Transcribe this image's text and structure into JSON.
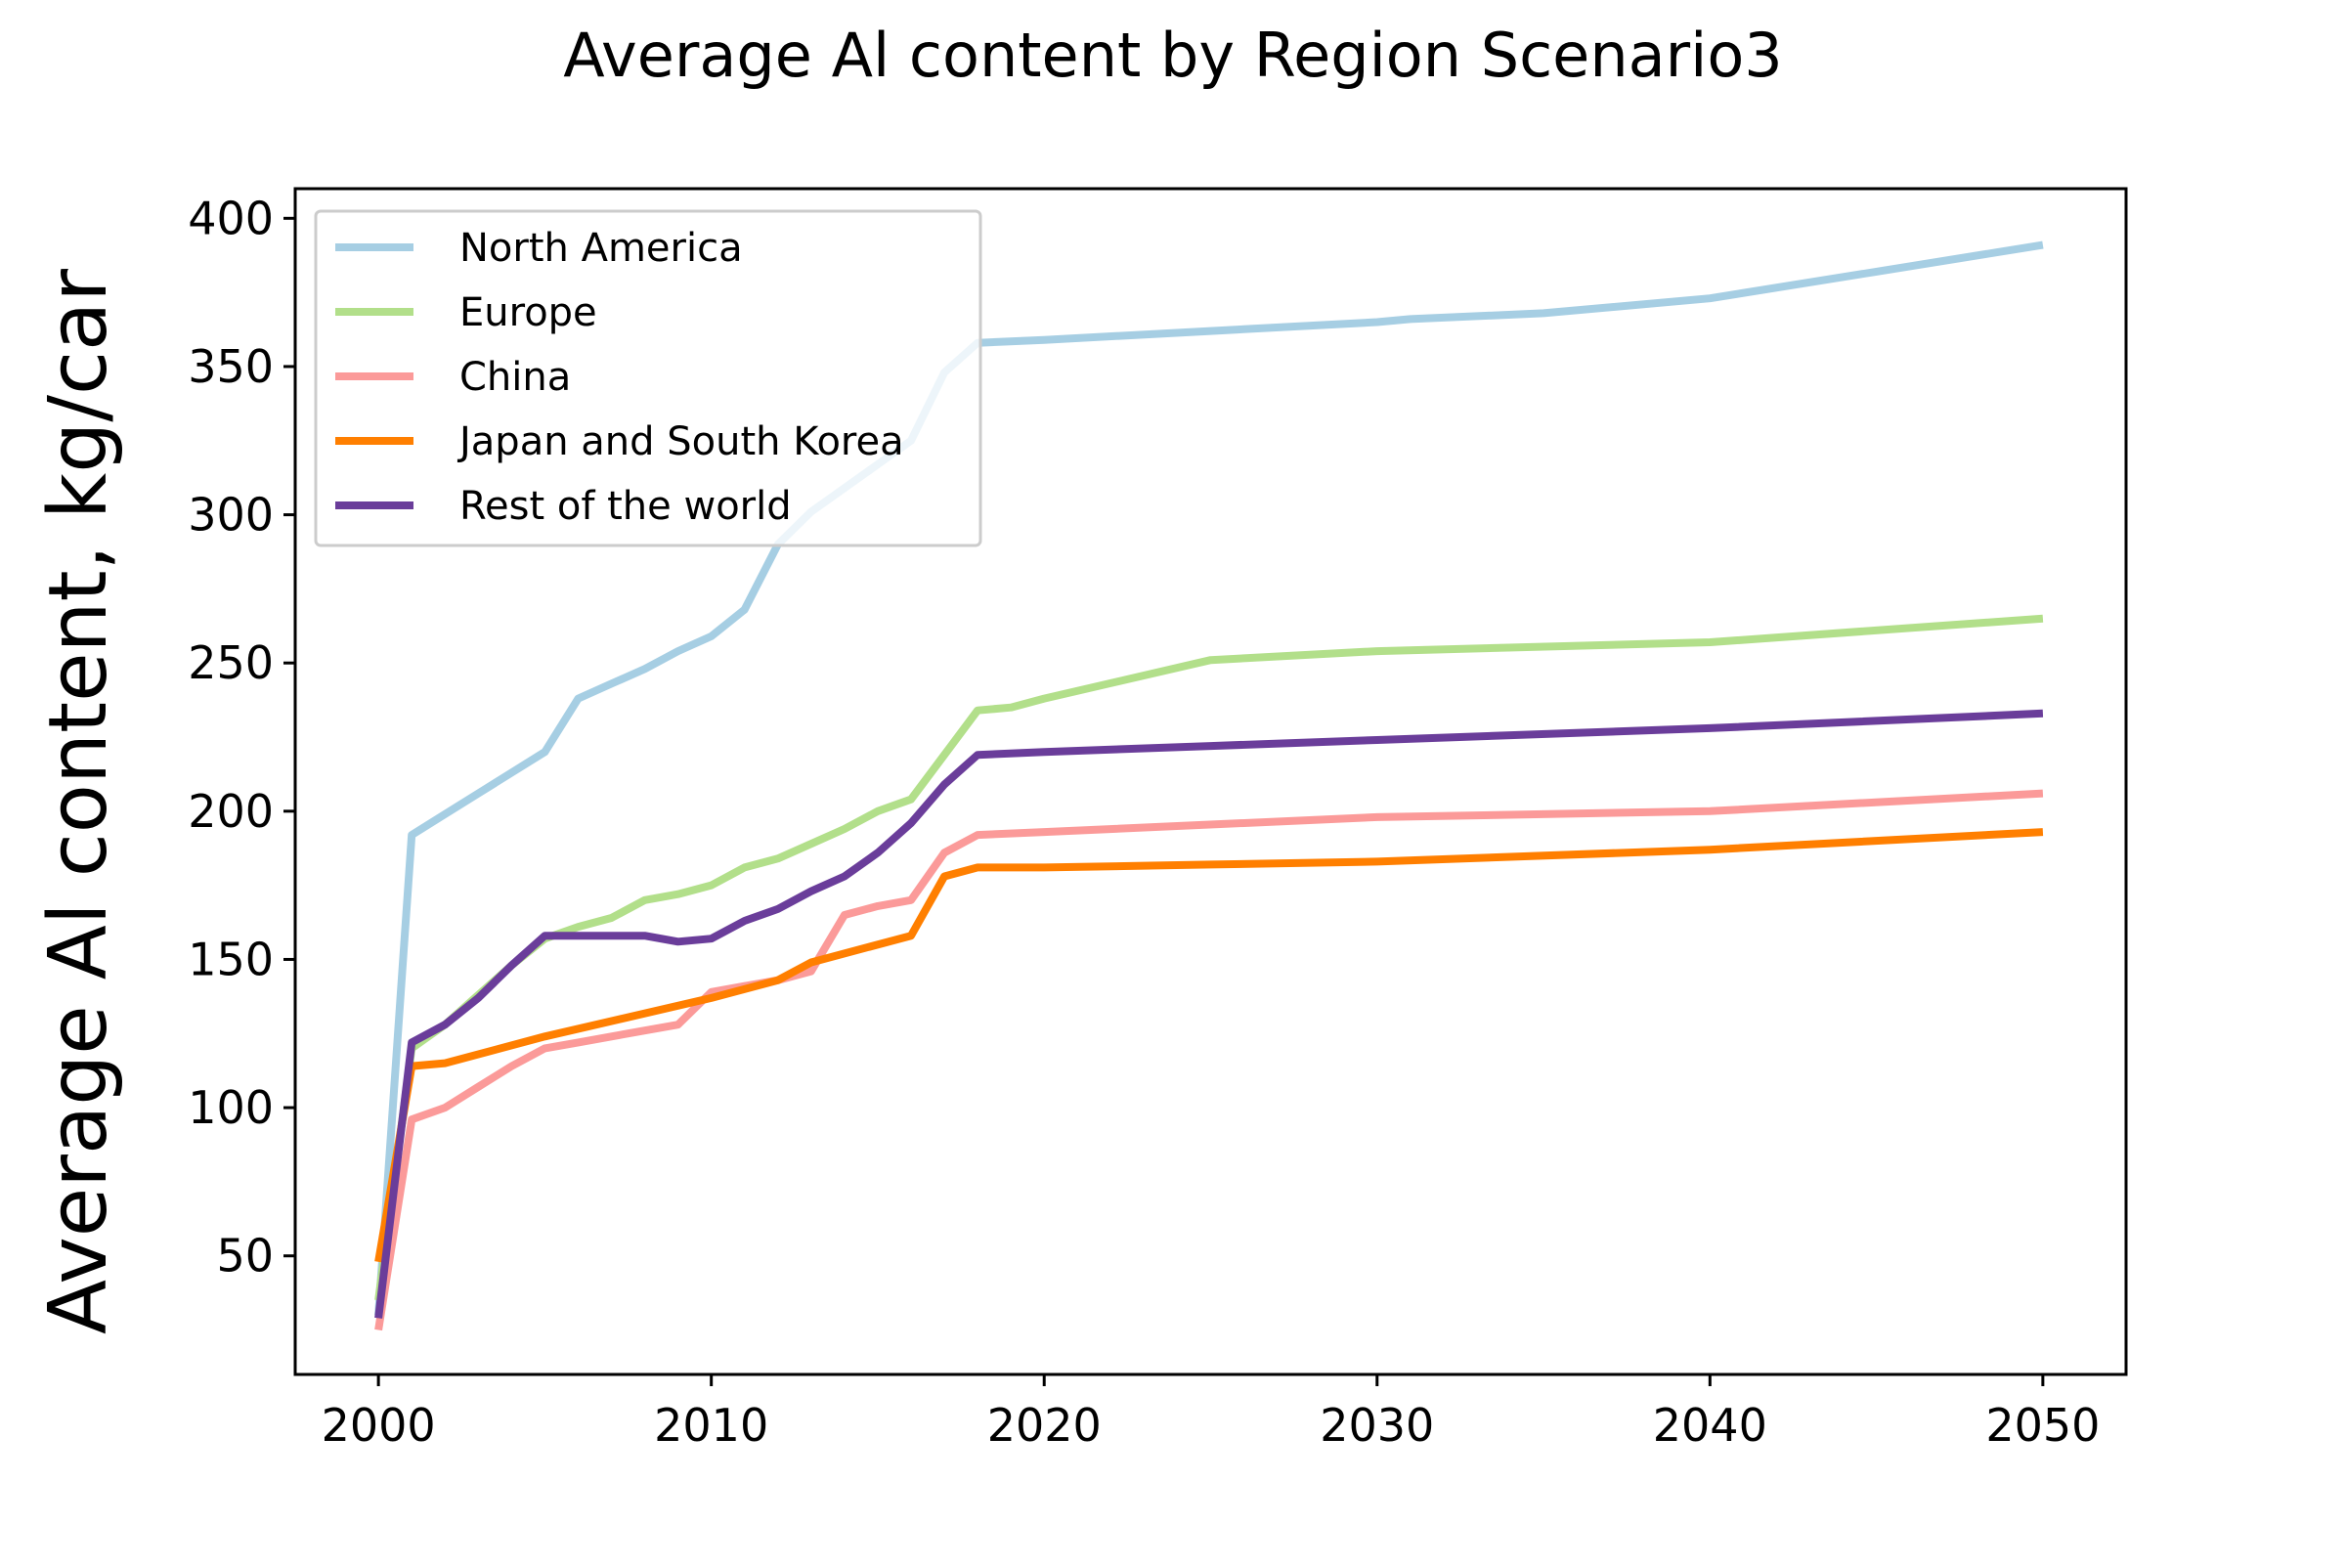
{
  "chart_data": {
    "type": "line",
    "title": "Average Al content by Region Scenario3",
    "xlabel": "",
    "ylabel": "Average Al content, kg/car",
    "xlim": [
      1997.5,
      2052.5
    ],
    "ylim": [
      10,
      410
    ],
    "x_ticks": [
      2000,
      2010,
      2020,
      2030,
      2040,
      2050
    ],
    "y_ticks": [
      50,
      100,
      150,
      200,
      250,
      300,
      350,
      400
    ],
    "grid": false,
    "legend_position": "upper-left",
    "series": [
      {
        "name": "North America",
        "color": "#a6cee3",
        "x": [
          2000,
          2001,
          2002,
          2003,
          2004,
          2005,
          2006,
          2007,
          2008,
          2009,
          2010,
          2011,
          2012,
          2013,
          2014,
          2015,
          2016,
          2017,
          2018,
          2020,
          2025,
          2030,
          2031,
          2035,
          2040,
          2045,
          2050
        ],
        "y": [
          30,
          192,
          199,
          206,
          213,
          220,
          238,
          243,
          248,
          254,
          259,
          268,
          290,
          301,
          309,
          317,
          325,
          348,
          358,
          359,
          362,
          365,
          366,
          368,
          373,
          382,
          391
        ]
      },
      {
        "name": "Europe",
        "color": "#b2df8a",
        "x": [
          2000,
          2001,
          2002,
          2003,
          2004,
          2005,
          2006,
          2007,
          2008,
          2009,
          2010,
          2011,
          2012,
          2013,
          2014,
          2015,
          2016,
          2017,
          2018,
          2019,
          2020,
          2025,
          2030,
          2040,
          2050
        ],
        "y": [
          35,
          120,
          128,
          138,
          148,
          157,
          161,
          164,
          170,
          172,
          175,
          181,
          184,
          189,
          194,
          200,
          204,
          219,
          234,
          235,
          238,
          251,
          254,
          257,
          265
        ]
      },
      {
        "name": "China",
        "color": "#fb9a99",
        "x": [
          2000,
          2001,
          2002,
          2003,
          2004,
          2005,
          2006,
          2007,
          2008,
          2009,
          2010,
          2011,
          2012,
          2013,
          2014,
          2015,
          2016,
          2017,
          2018,
          2020,
          2030,
          2040,
          2050
        ],
        "y": [
          25,
          96,
          100,
          107,
          114,
          120,
          122,
          124,
          126,
          128,
          139,
          141,
          143,
          146,
          165,
          168,
          170,
          186,
          192,
          193,
          198,
          200,
          206
        ]
      },
      {
        "name": "Japan and South Korea",
        "color": "#ff7f00",
        "x": [
          2000,
          2001,
          2002,
          2005,
          2010,
          2012,
          2013,
          2016,
          2017,
          2018,
          2020,
          2025,
          2030,
          2040,
          2050
        ],
        "y": [
          48,
          114,
          115,
          124,
          137,
          143,
          149,
          158,
          178,
          181,
          181,
          182,
          183,
          187,
          193
        ]
      },
      {
        "name": "Rest of the world",
        "color": "#6a3d9a",
        "x": [
          2000,
          2001,
          2002,
          2003,
          2004,
          2005,
          2006,
          2007,
          2008,
          2009,
          2010,
          2011,
          2012,
          2013,
          2014,
          2015,
          2016,
          2017,
          2018,
          2020,
          2025,
          2030,
          2040,
          2050
        ],
        "y": [
          29,
          122,
          128,
          137,
          148,
          158,
          158,
          158,
          158,
          156,
          157,
          163,
          167,
          173,
          178,
          186,
          196,
          209,
          219,
          220,
          222,
          224,
          228,
          233
        ]
      }
    ]
  }
}
